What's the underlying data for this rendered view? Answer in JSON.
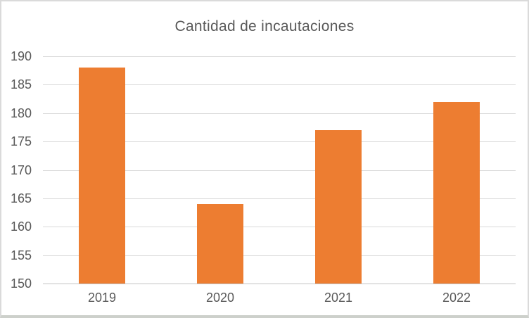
{
  "chart_data": {
    "type": "bar",
    "title": "Cantidad de incautaciones",
    "categories": [
      "2019",
      "2020",
      "2021",
      "2022"
    ],
    "values": [
      188,
      164,
      177,
      182
    ],
    "xlabel": "",
    "ylabel": "",
    "ylim": [
      150,
      190
    ],
    "yticks": [
      150,
      155,
      160,
      165,
      170,
      175,
      180,
      185,
      190
    ],
    "grid": true,
    "legend": "none",
    "colors": {
      "bar": "#ED7D31",
      "text": "#595959",
      "gridline": "#D9D9D9",
      "axis_line": "#C3C3C3",
      "background": "#FFFFFF"
    }
  }
}
